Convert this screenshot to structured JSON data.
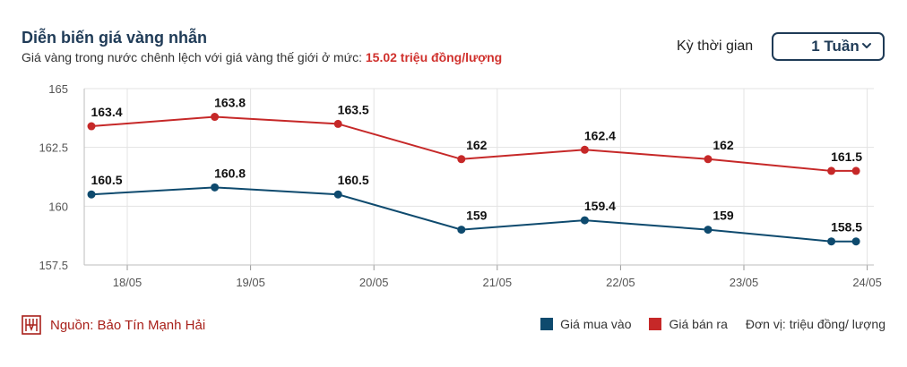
{
  "header": {
    "title": "Diễn biến giá vàng nhẫn",
    "subtitle_prefix": "Giá vàng trong nước chênh lệch với giá vàng thế giới ở mức:",
    "subtitle_value": "15.02 triệu đồng/lượng",
    "highlight_color": "#d0312d"
  },
  "controls": {
    "period_label": "Kỳ thời gian",
    "period_value": "1 Tuần",
    "dropdown_icon": "chevron-down-icon"
  },
  "footer": {
    "source_icon": "bao-tin-manh-hai-logo-icon",
    "source_text": "Nguồn: Bảo Tín Mạnh Hải",
    "unit_text": "Đơn vị: triệu đồng/ lượng"
  },
  "chart_data": {
    "type": "line",
    "categories": [
      "18/05",
      "19/05",
      "20/05",
      "21/05",
      "22/05",
      "23/05",
      "24/05"
    ],
    "y_ticks": [
      "165",
      "162.5",
      "160",
      "157.5"
    ],
    "ylim": [
      157.5,
      165
    ],
    "grid": true,
    "legend_position": "bottom-right",
    "series": [
      {
        "name": "Giá mua vào",
        "color": "#0e4a6e",
        "x": [
          0,
          1,
          2,
          3,
          4,
          5,
          6,
          6.2
        ],
        "values": [
          160.5,
          160.8,
          160.5,
          159,
          159.4,
          159,
          158.5,
          158.5
        ],
        "labels": [
          "160.5",
          "160.8",
          "160.5",
          "159",
          "159.4",
          "159",
          "158.5",
          ""
        ]
      },
      {
        "name": "Giá bán ra",
        "color": "#c62828",
        "x": [
          0,
          1,
          2,
          3,
          4,
          5,
          6,
          6.2
        ],
        "values": [
          163.4,
          163.8,
          163.5,
          162,
          162.4,
          162,
          161.5,
          161.5
        ],
        "labels": [
          "163.4",
          "163.8",
          "163.5",
          "162",
          "162.4",
          "162",
          "161.5",
          ""
        ]
      }
    ]
  }
}
